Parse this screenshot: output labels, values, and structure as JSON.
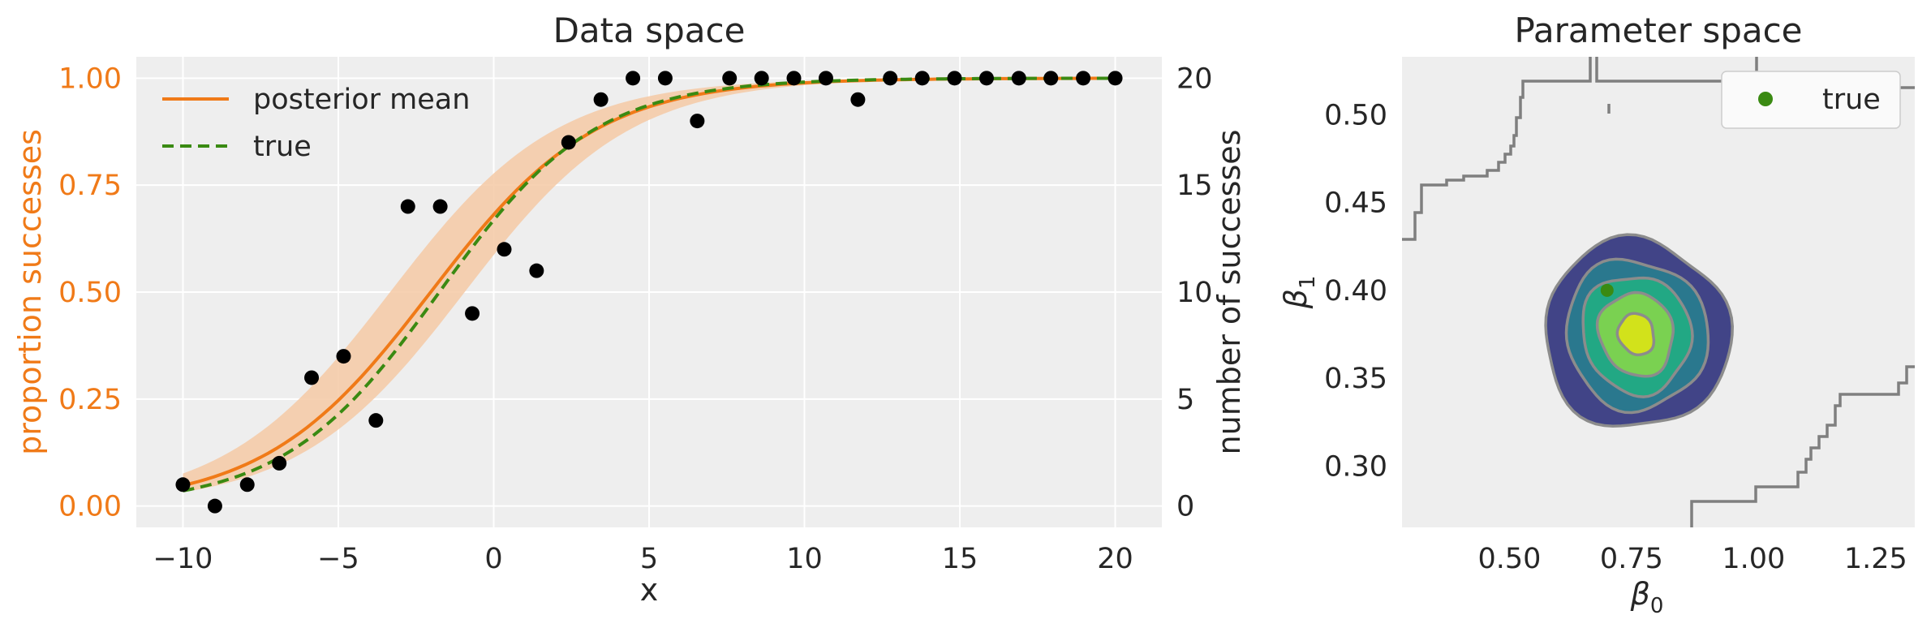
{
  "chart_data": [
    {
      "type": "line",
      "title": "Data space",
      "xlabel": "x",
      "ylabel_left": "proportion successes",
      "ylabel_right": "number of successes",
      "xlim": [
        -11.5,
        21.5
      ],
      "ylim_left": [
        -0.05,
        1.05
      ],
      "ylim_right": [
        -1,
        21
      ],
      "xticks": [
        -10,
        -5,
        0,
        5,
        10,
        15,
        20
      ],
      "xtick_labels": [
        "−10",
        "−5",
        "0",
        "5",
        "10",
        "15",
        "20"
      ],
      "yticks_left": [
        0.0,
        0.25,
        0.5,
        0.75,
        1.0
      ],
      "ytick_labels_left": [
        "0.00",
        "0.25",
        "0.50",
        "0.75",
        "1.00"
      ],
      "yticks_right": [
        0,
        5,
        10,
        15,
        20
      ],
      "ytick_labels_right": [
        "0",
        "5",
        "10",
        "15",
        "20"
      ],
      "grid": true,
      "legend_position": "upper-left",
      "series": [
        {
          "name": "posterior mean",
          "beta0": 0.76,
          "beta1": 0.375,
          "color": "#f07a18",
          "style": "solid"
        },
        {
          "name": "true",
          "beta0": 0.7,
          "beta1": 0.4,
          "color": "#3a8a12",
          "style": "dashed"
        }
      ],
      "band": {
        "color": "#f5c9a4",
        "beta0_low": 0.35,
        "beta0_high": 1.25,
        "beta1": 0.375
      },
      "points": {
        "color": "#000000",
        "x": [
          -10,
          -8.97,
          -7.93,
          -6.9,
          -5.86,
          -4.83,
          -3.79,
          -2.76,
          -1.72,
          -0.69,
          0.34,
          1.38,
          2.41,
          3.45,
          4.48,
          5.52,
          6.55,
          7.59,
          8.62,
          9.66,
          10.69,
          11.72,
          12.76,
          13.79,
          14.83,
          15.86,
          16.9,
          17.93,
          18.97,
          20
        ],
        "y": [
          1,
          0,
          1,
          2,
          6,
          7,
          4,
          14,
          14,
          9,
          12,
          11,
          17,
          19,
          20,
          20,
          18,
          20,
          20,
          20,
          20,
          19,
          20,
          20,
          20,
          20,
          20,
          20,
          20,
          20
        ]
      }
    },
    {
      "type": "contour",
      "title": "Parameter space",
      "xlabel": "β",
      "xlabel_sub": "0",
      "ylabel": "β",
      "ylabel_sub": "1",
      "xlim": [
        0.28,
        1.33
      ],
      "ylim": [
        0.265,
        0.533
      ],
      "xticks": [
        0.5,
        0.75,
        1.0,
        1.25
      ],
      "xtick_labels": [
        "0.50",
        "0.75",
        "1.00",
        "1.25"
      ],
      "yticks": [
        0.3,
        0.35,
        0.4,
        0.45,
        0.5
      ],
      "ytick_labels": [
        "0.30",
        "0.35",
        "0.40",
        "0.45",
        "0.50"
      ],
      "legend_position": "upper-right",
      "true_point": {
        "name": "true",
        "beta0": 0.7,
        "beta1": 0.4,
        "color": "#3a8a12"
      },
      "density_center": {
        "beta0": 0.76,
        "beta1": 0.375
      },
      "levels": [
        {
          "color": "#414487",
          "rx": 0.19,
          "ry": 0.054
        },
        {
          "color": "#2a788e",
          "rx": 0.144,
          "ry": 0.043
        },
        {
          "color": "#22a884",
          "rx": 0.11,
          "ry": 0.034
        },
        {
          "color": "#7ad151",
          "rx": 0.075,
          "ry": 0.024
        },
        {
          "color": "#d2e21b",
          "rx": 0.036,
          "ry": 0.012
        }
      ],
      "contour_edge_color": "#8c8c8c"
    }
  ]
}
